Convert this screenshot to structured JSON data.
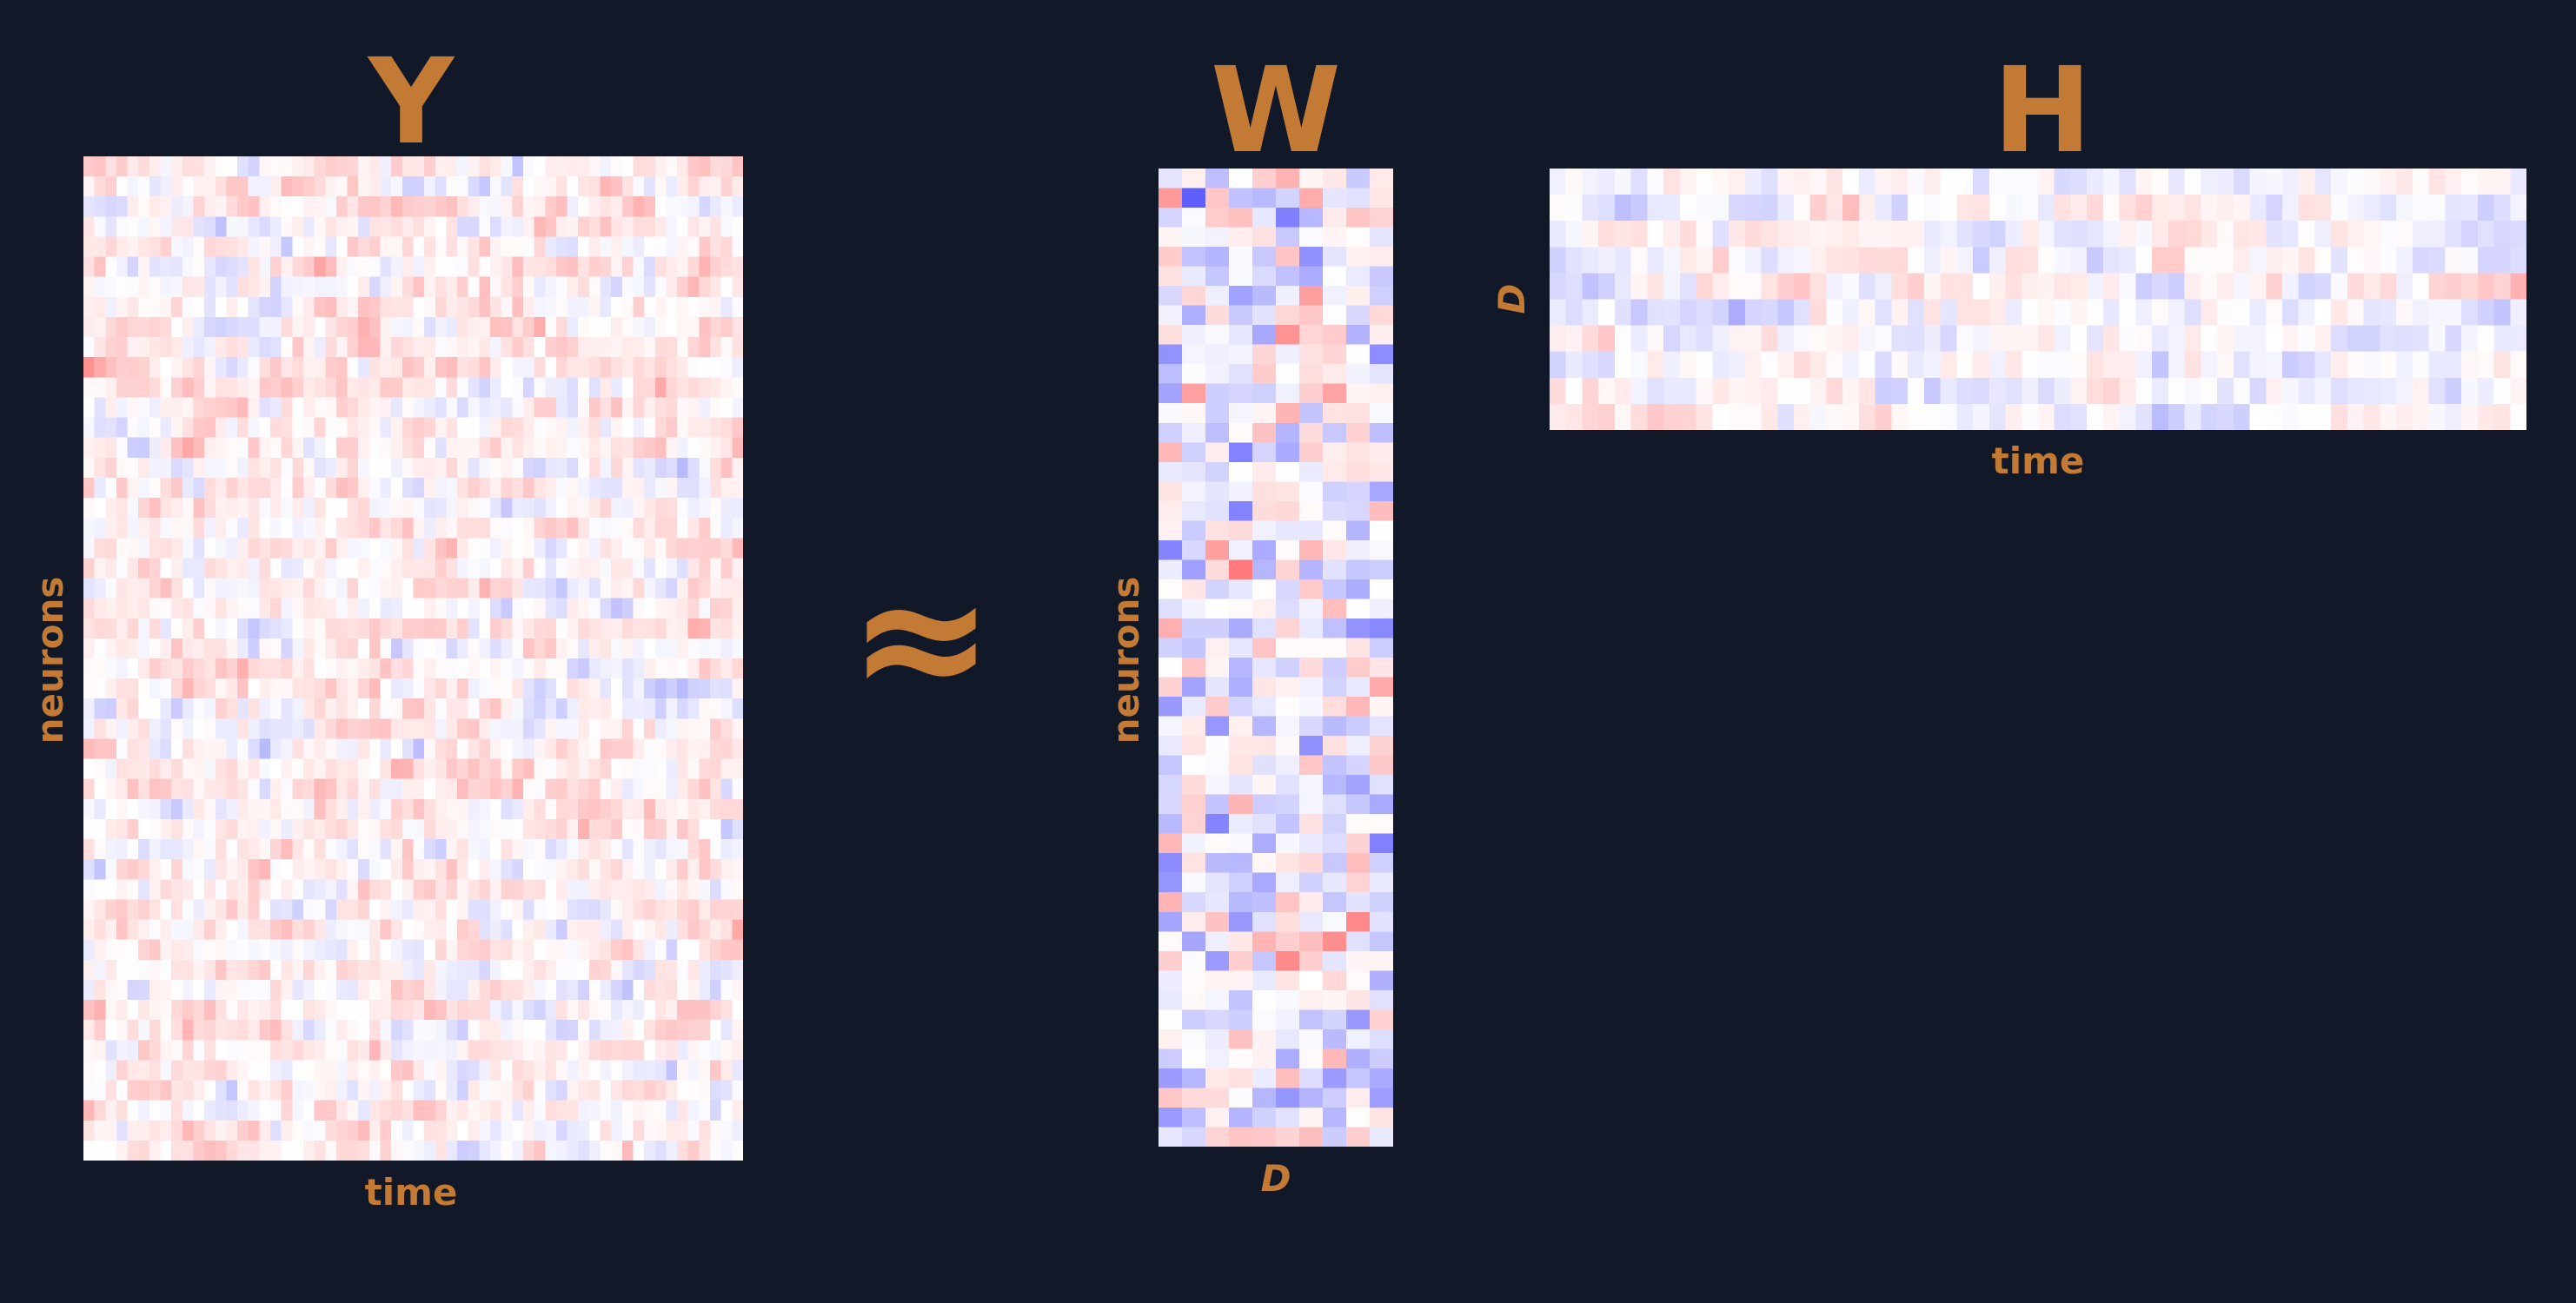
{
  "figure": {
    "approx_symbol": "≈",
    "label_color": "#c27a34",
    "background_color": "#111827",
    "colormap": {
      "negative": "#0000ff",
      "zero": "#ffffff",
      "positive": "#ff0000"
    }
  },
  "matrices": {
    "Y": {
      "title": "Y",
      "xlabel": "time",
      "ylabel": "neurons",
      "rows": 50,
      "cols": 60
    },
    "W": {
      "title": "W",
      "xlabel": "D",
      "ylabel": "neurons",
      "rows": 50,
      "cols": 10
    },
    "H": {
      "title": "H",
      "xlabel": "time",
      "ylabel": "D",
      "rows": 10,
      "cols": 60
    }
  }
}
